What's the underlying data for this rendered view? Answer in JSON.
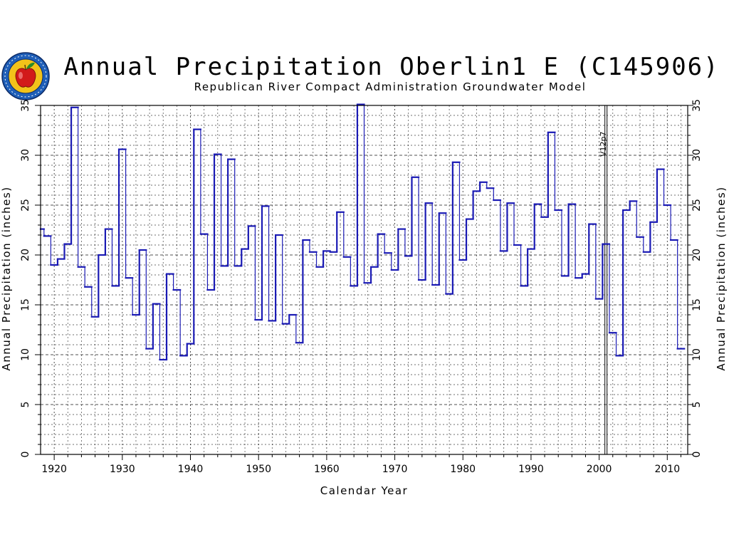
{
  "header": {
    "title": "Annual Precipitation Oberlin1 E (C145906)",
    "subtitle": "Republican River Compact Administration Groundwater Model"
  },
  "colors": {
    "series": "#1a1ab4",
    "grid": "#000000",
    "logo_ring": "#1f5fb8",
    "logo_fill": "#f2c21a",
    "logo_apple": "#d21a1a",
    "logo_leaf": "#2a8a2a"
  },
  "logo": {
    "icon": "rrca-apple-seal-icon"
  },
  "chart_data": {
    "type": "line",
    "step": true,
    "title": "Annual Precipitation Oberlin1 E (C145906)",
    "subtitle": "Republican River Compact Administration Groundwater Model",
    "xlabel": "Calendar Year",
    "ylabel_left": "Annual Precipitation (inches)",
    "ylabel_right": "Annual Precipitation (inches)",
    "xlim": [
      1918,
      2013
    ],
    "ylim": [
      0,
      35
    ],
    "xticks": [
      1920,
      1930,
      1940,
      1950,
      1960,
      1970,
      1980,
      1990,
      2000,
      2010
    ],
    "yticks": [
      0,
      5,
      10,
      15,
      20,
      25,
      30,
      35
    ],
    "grid": true,
    "vline": {
      "x": 2001,
      "label": "V12p7"
    },
    "series": [
      {
        "x": [
          1918,
          1919,
          1920,
          1921,
          1922,
          1923,
          1924,
          1925,
          1926,
          1927,
          1928,
          1929,
          1930,
          1931,
          1932,
          1933,
          1934,
          1935,
          1936,
          1937,
          1938,
          1939,
          1940,
          1941,
          1942,
          1943,
          1944,
          1945,
          1946,
          1947,
          1948,
          1949,
          1950,
          1951,
          1952,
          1953,
          1954,
          1955,
          1956,
          1957,
          1958,
          1959,
          1960,
          1961,
          1962,
          1963,
          1964,
          1965,
          1966,
          1967,
          1968,
          1969,
          1970,
          1971,
          1972,
          1973,
          1974,
          1975,
          1976,
          1977,
          1978,
          1979,
          1980,
          1981,
          1982,
          1983,
          1984,
          1985,
          1986,
          1987,
          1988,
          1989,
          1990,
          1991,
          1992,
          1993,
          1994,
          1995,
          1996,
          1997,
          1998,
          1999,
          2000,
          2001,
          2002,
          2003,
          2004,
          2005,
          2006,
          2007,
          2008,
          2009,
          2010,
          2011,
          2012
        ],
        "values": [
          22.6,
          21.9,
          19.0,
          19.6,
          21.1,
          34.8,
          18.8,
          16.8,
          13.8,
          20.0,
          22.6,
          16.9,
          30.6,
          17.7,
          14.0,
          20.5,
          10.6,
          15.1,
          9.5,
          18.1,
          16.5,
          9.9,
          11.1,
          32.6,
          22.1,
          16.5,
          30.1,
          18.9,
          29.6,
          18.9,
          20.6,
          22.9,
          13.5,
          24.9,
          13.4,
          22.0,
          13.1,
          14.0,
          11.2,
          21.5,
          20.3,
          18.8,
          20.4,
          20.3,
          24.3,
          19.8,
          16.9,
          35.1,
          17.2,
          18.8,
          22.1,
          20.2,
          18.5,
          22.6,
          19.9,
          27.8,
          17.5,
          25.2,
          17.0,
          24.2,
          16.1,
          29.3,
          19.5,
          23.6,
          26.4,
          27.3,
          26.7,
          25.5,
          20.4,
          25.2,
          21.0,
          16.9,
          20.6,
          25.1,
          23.8,
          32.3,
          24.5,
          17.9,
          25.1,
          17.7,
          18.1,
          23.1,
          15.6,
          21.1,
          12.2,
          9.9,
          24.5,
          25.4,
          21.8,
          20.3,
          23.3,
          28.6,
          25.0,
          21.5,
          10.6
        ]
      }
    ]
  }
}
